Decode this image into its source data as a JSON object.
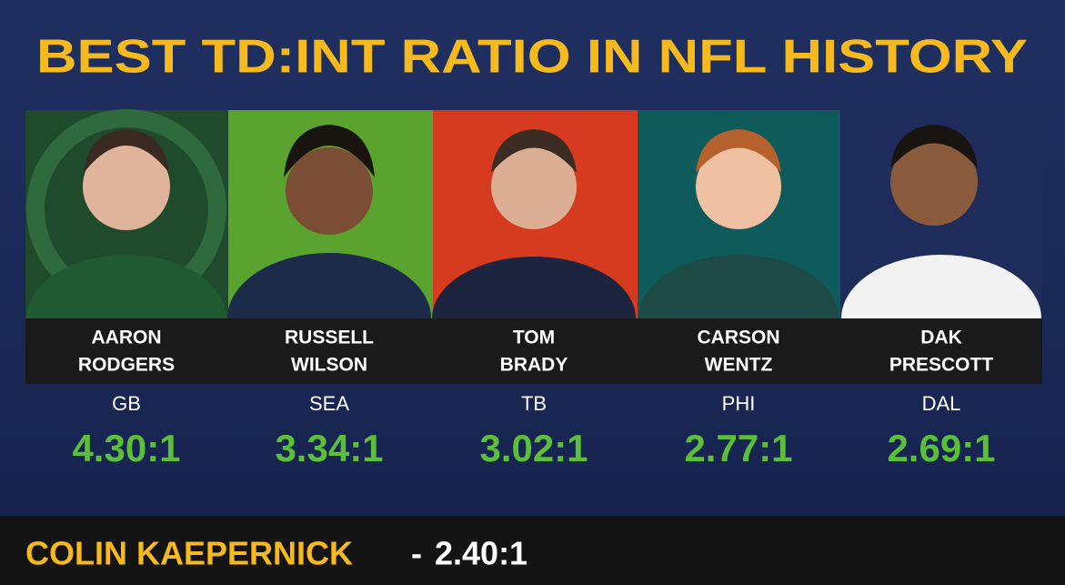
{
  "header": {
    "title": "BEST TD:INT RATIO IN NFL HISTORY"
  },
  "players": [
    {
      "first": "AARON",
      "last": "RODGERS",
      "team": "GB",
      "ratio": "4.30:1"
    },
    {
      "first": "RUSSELL",
      "last": "WILSON",
      "team": "SEA",
      "ratio": "3.34:1"
    },
    {
      "first": "TOM",
      "last": "BRADY",
      "team": "TB",
      "ratio": "3.02:1"
    },
    {
      "first": "CARSON",
      "last": "WENTZ",
      "team": "PHI",
      "ratio": "2.77:1"
    },
    {
      "first": "DAK",
      "last": "PRESCOTT",
      "team": "DAL",
      "ratio": "2.69:1"
    }
  ],
  "footer": {
    "name": "COLIN KAEPERNICK",
    "separator": "-",
    "ratio": "2.40:1"
  }
}
